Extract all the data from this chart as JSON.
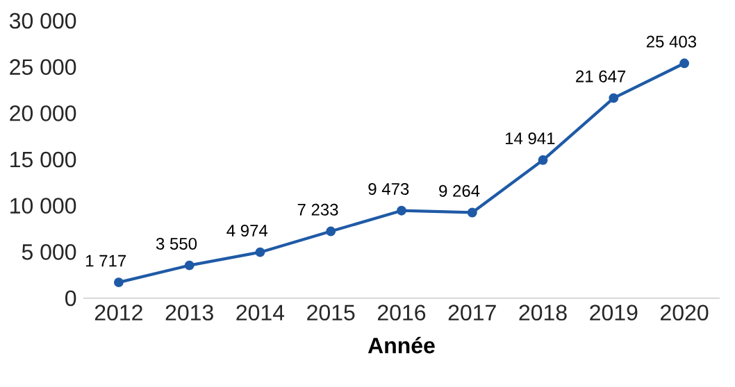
{
  "chart_data": {
    "type": "line",
    "xlabel": "Année",
    "categories": [
      "2012",
      "2013",
      "2014",
      "2015",
      "2016",
      "2017",
      "2018",
      "2019",
      "2020"
    ],
    "series": [
      {
        "color": "#1f5aa6",
        "values": [
          1717,
          3550,
          4974,
          7233,
          9473,
          9264,
          14941,
          21647,
          25403
        ],
        "value_labels": [
          "1 717",
          "3 550",
          "4 974",
          "7 233",
          "9 473",
          "9 264",
          "14 941",
          "21 647",
          "25 403"
        ]
      }
    ],
    "ylim": [
      0,
      30000
    ],
    "yticks": [
      {
        "value": 0,
        "label": "0"
      },
      {
        "value": 5000,
        "label": "5 000"
      },
      {
        "value": 10000,
        "label": "10 000"
      },
      {
        "value": 15000,
        "label": "15 000"
      },
      {
        "value": 20000,
        "label": "20 000"
      },
      {
        "value": 25000,
        "label": "25 000"
      },
      {
        "value": 30000,
        "label": "30 000"
      }
    ],
    "grid": false,
    "marker": "circle",
    "line_style": "solid"
  }
}
